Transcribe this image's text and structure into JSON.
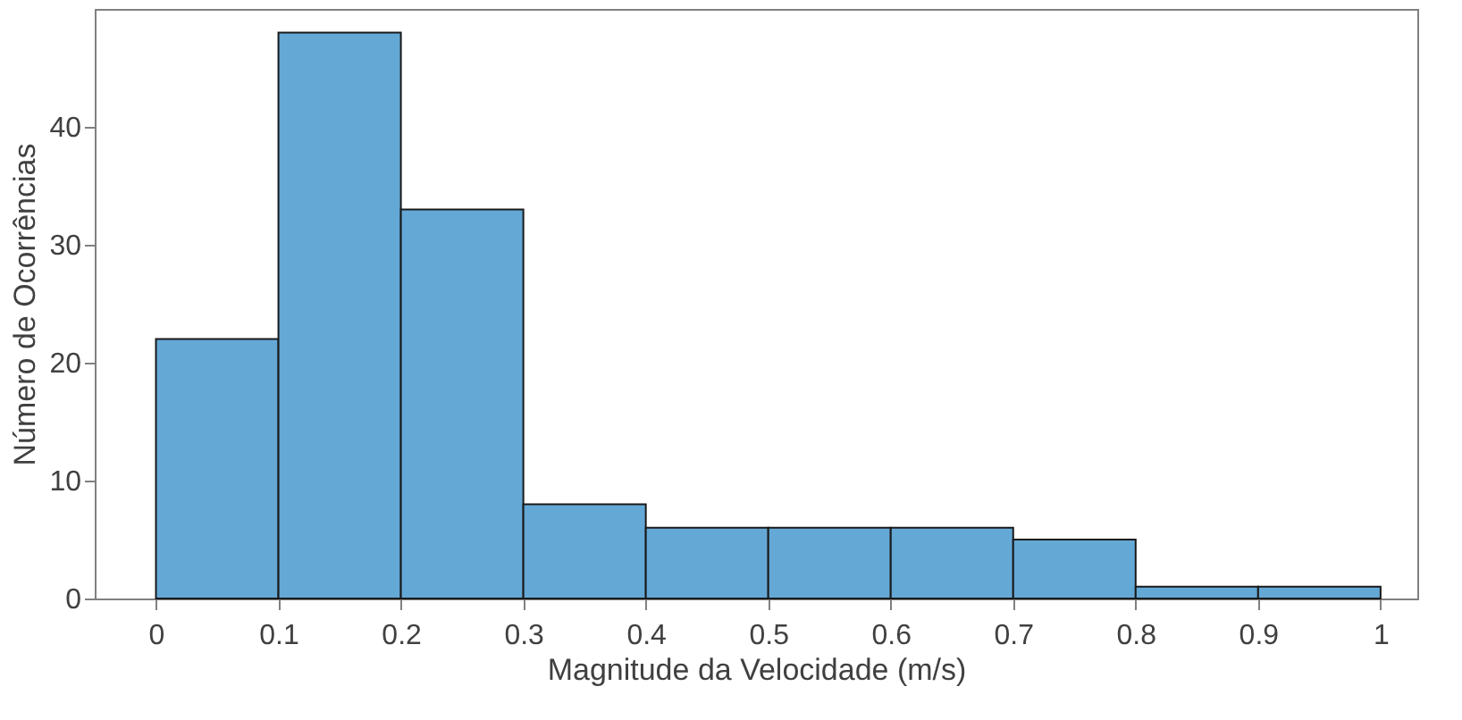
{
  "chart_data": {
    "type": "histogram",
    "xlabel": "Magnitude da Velocidade (m/s)",
    "ylabel": "Número de Ocorrências",
    "bins": [
      0,
      0.1,
      0.2,
      0.3,
      0.4,
      0.5,
      0.6,
      0.7,
      0.8,
      0.9,
      1
    ],
    "values": [
      22,
      48,
      33,
      8,
      6,
      6,
      6,
      5,
      1,
      1
    ],
    "color": "#64a8d6",
    "xlim": [
      -0.05,
      1.03
    ],
    "xticks": [
      0,
      0.1,
      0.2,
      0.3,
      0.4,
      0.5,
      0.6,
      0.7,
      0.8,
      0.9,
      1
    ],
    "ylim": [
      0,
      50
    ],
    "yticks": [
      0,
      10,
      20,
      30,
      40
    ],
    "grid": false
  }
}
